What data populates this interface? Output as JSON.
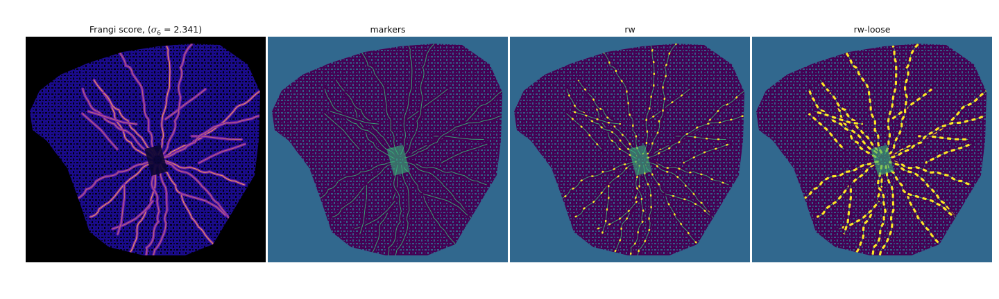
{
  "panels": [
    {
      "title_prefix": "Frangi score, (",
      "title_symbol": "σ",
      "title_subscript": "6",
      "title_suffix": " = 2.341)",
      "colormap": "plasma-on-black",
      "colors": {
        "background": "#000000",
        "tissue": "#1a0b8c",
        "vessel_low": "#7a1fb0",
        "vessel_high": "#f0a14b"
      }
    },
    {
      "title": "markers",
      "colormap": "viridis",
      "colors": {
        "background": "#31688e",
        "tissue": "#440154",
        "vessel": "#35b779"
      }
    },
    {
      "title": "rw",
      "colormap": "viridis",
      "colors": {
        "background": "#31688e",
        "tissue": "#440154",
        "vessel": "#35b779",
        "highlight": "#fde725"
      }
    },
    {
      "title": "rw-loose",
      "colormap": "viridis",
      "colors": {
        "background": "#31688e",
        "tissue": "#440154",
        "vessel": "#35b779",
        "highlight": "#fde725"
      }
    }
  ]
}
